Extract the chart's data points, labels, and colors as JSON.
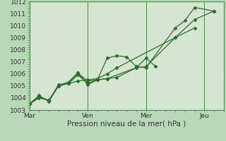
{
  "title": "",
  "xlabel": "Pression niveau de la mer( hPa )",
  "ylabel": "",
  "background_color": "#b8d8b8",
  "plot_bg_color": "#d0e8d0",
  "grid_major_color": "#f0d8d8",
  "grid_minor_color": "#f0d8d8",
  "line_color": "#2d6b2d",
  "spine_color": "#4a8a4a",
  "ylim": [
    1003,
    1012
  ],
  "yticks": [
    1003,
    1004,
    1005,
    1006,
    1007,
    1008,
    1009,
    1010,
    1011,
    1012
  ],
  "xtick_labels": [
    "Mar",
    "Ven",
    "Mer",
    "Jeu"
  ],
  "xtick_positions": [
    0,
    3,
    6,
    9
  ],
  "series_x": [
    [
      0,
      0.5,
      1.0,
      1.5,
      2.0,
      2.5,
      3.0,
      3.5,
      4.0,
      4.5,
      7.5,
      8.5,
      9.5
    ],
    [
      0,
      0.5,
      1.0,
      1.5,
      2.0,
      2.5,
      3.0,
      3.5,
      4.0,
      4.5,
      5.0,
      5.5,
      6.0,
      7.5,
      8.0,
      8.5,
      9.5
    ],
    [
      0,
      0.5,
      1.0,
      1.5,
      2.0,
      2.5,
      3.0,
      3.5,
      4.0,
      4.5,
      5.5,
      6.0,
      7.5,
      8.5
    ],
    [
      0,
      0.5,
      1.0,
      1.5,
      2.0,
      2.5,
      3.0,
      3.5,
      4.0,
      5.5,
      6.0,
      6.5
    ]
  ],
  "series_y": [
    [
      1003.5,
      1004.0,
      1003.8,
      1005.0,
      1005.2,
      1005.4,
      1005.5,
      1005.6,
      1006.0,
      1006.5,
      1009.0,
      1010.5,
      1011.2
    ],
    [
      1003.5,
      1004.2,
      1003.7,
      1005.0,
      1005.3,
      1006.1,
      1005.1,
      1005.5,
      1007.3,
      1007.5,
      1007.4,
      1006.6,
      1006.5,
      1009.8,
      1010.4,
      1011.5,
      1011.2
    ],
    [
      1003.5,
      1004.1,
      1003.75,
      1005.1,
      1005.25,
      1006.05,
      1005.4,
      1005.5,
      1005.6,
      1005.7,
      1006.5,
      1006.6,
      1009.0,
      1009.8
    ],
    [
      1003.5,
      1004.1,
      1003.8,
      1005.0,
      1005.2,
      1005.9,
      1005.2,
      1005.5,
      1005.6,
      1006.5,
      1007.3,
      1006.6
    ]
  ],
  "xlim": [
    0,
    10
  ],
  "vlines": [
    0,
    3,
    6,
    9
  ],
  "marker": "D",
  "markersize": 2.5,
  "linewidth": 0.9,
  "tick_fontsize": 6.5,
  "xlabel_fontsize": 7.5
}
